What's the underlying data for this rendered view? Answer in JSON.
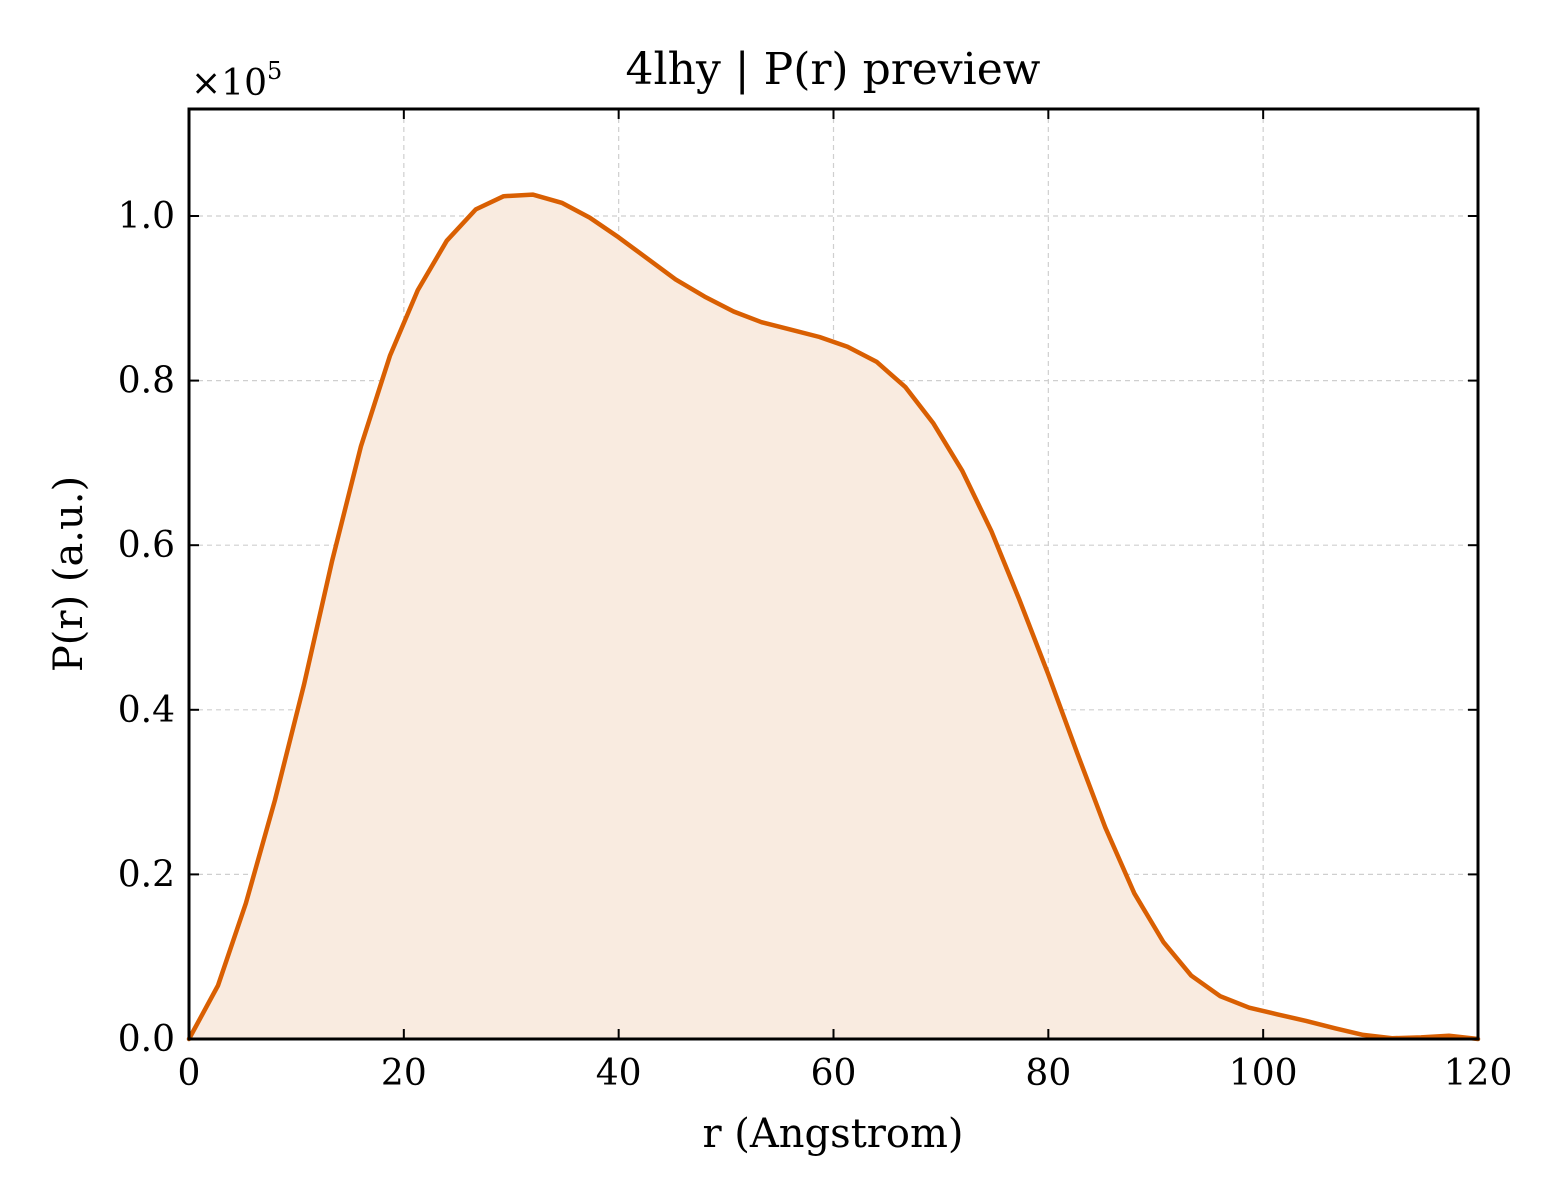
{
  "chart_data": {
    "type": "area",
    "title": "4lhy | P(r) preview",
    "xlabel": "r (Angstrom)",
    "ylabel": "P(r) (a.u.)",
    "y_scale_label": "×10",
    "y_scale_exponent": "5",
    "xlim": [
      0,
      120
    ],
    "ylim": [
      0,
      1.13
    ],
    "x_ticks": [
      0,
      20,
      40,
      60,
      80,
      100,
      120
    ],
    "x_tick_labels": [
      "0",
      "20",
      "40",
      "60",
      "80",
      "100",
      "120"
    ],
    "y_ticks": [
      0.0,
      0.2,
      0.4,
      0.6,
      0.8,
      1.0
    ],
    "y_tick_labels": [
      "0.0",
      "0.2",
      "0.4",
      "0.6",
      "0.8",
      "1.0"
    ],
    "grid": true,
    "line_color": "#d95f02",
    "fill_color": "#f9ebe0",
    "series": [
      {
        "x": [
          0,
          2.7,
          5.3,
          8.0,
          10.7,
          13.3,
          16.0,
          18.7,
          21.3,
          24.0,
          26.7,
          29.3,
          32.0,
          34.7,
          37.3,
          40.0,
          42.7,
          45.3,
          48.0,
          50.7,
          53.3,
          56.0,
          58.7,
          61.3,
          64.0,
          66.7,
          69.3,
          72.0,
          74.7,
          77.3,
          80.0,
          82.7,
          85.3,
          88.0,
          90.7,
          93.3,
          96.0,
          98.7,
          101.3,
          104.0,
          106.7,
          109.3,
          112.0,
          114.7,
          117.3,
          120.0
        ],
        "y": [
          0.0,
          0.065,
          0.165,
          0.29,
          0.43,
          0.58,
          0.72,
          0.83,
          0.91,
          0.97,
          1.008,
          1.024,
          1.026,
          1.016,
          0.998,
          0.974,
          0.948,
          0.923,
          0.902,
          0.884,
          0.871,
          0.862,
          0.853,
          0.841,
          0.823,
          0.792,
          0.748,
          0.69,
          0.617,
          0.534,
          0.443,
          0.347,
          0.257,
          0.177,
          0.118,
          0.077,
          0.052,
          0.038,
          0.03,
          0.022,
          0.013,
          0.005,
          0.001,
          0.002,
          0.004,
          0.0
        ]
      }
    ]
  }
}
